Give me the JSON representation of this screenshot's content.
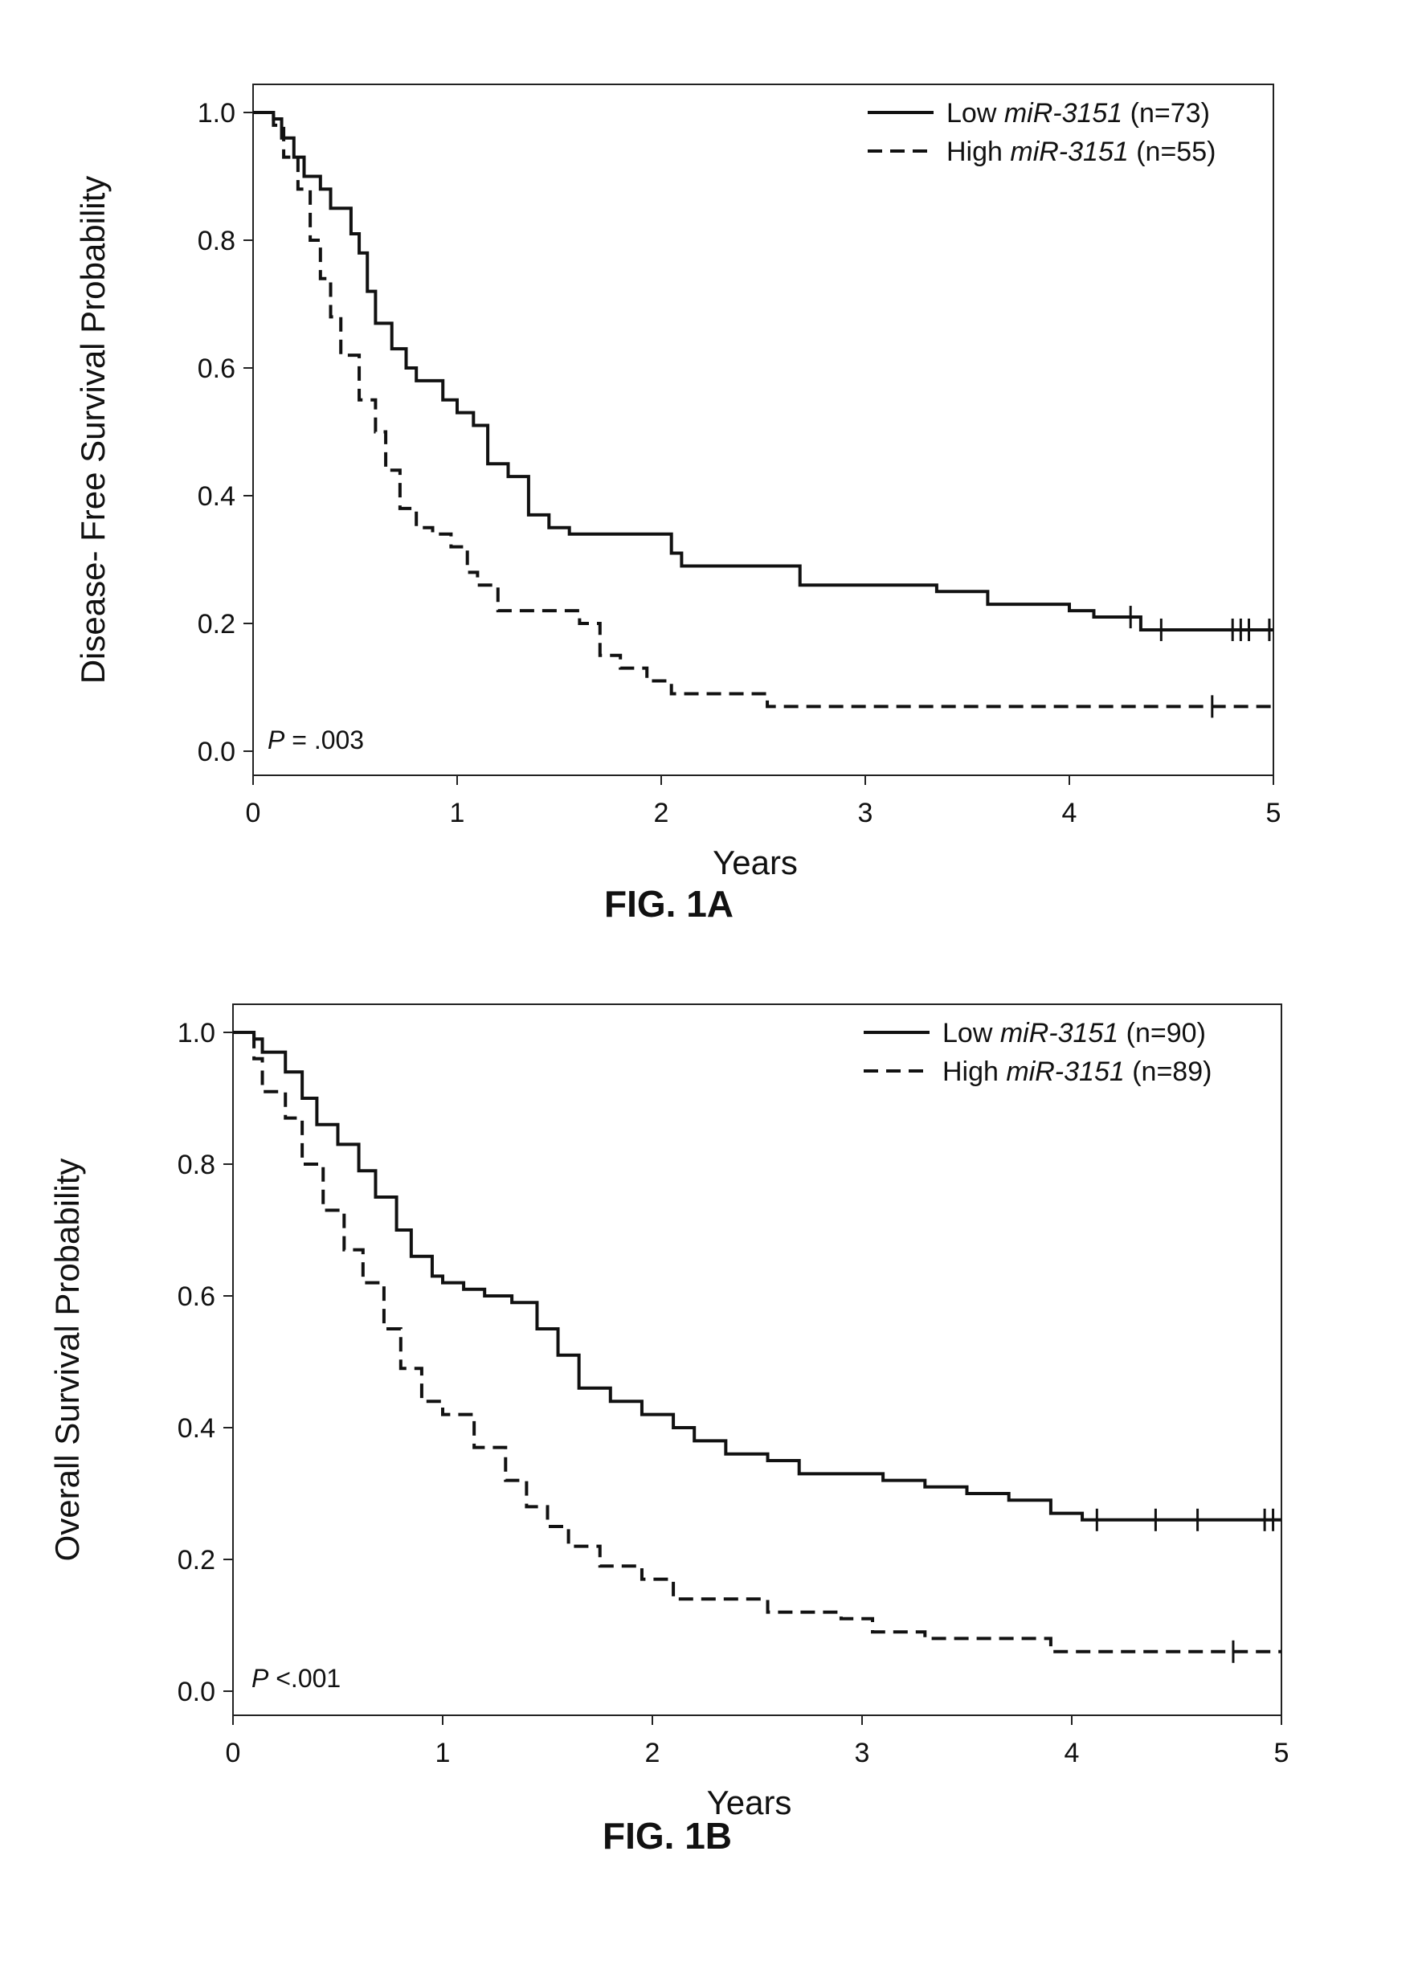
{
  "figures": [
    {
      "label": "FIG. 1A"
    },
    {
      "label": "FIG. 1B"
    }
  ],
  "chart_data": [
    {
      "type": "line",
      "subtype": "kaplan-meier-step",
      "ylabel": "Disease- Free Survival Probability",
      "xlabel": "Years",
      "xlim": [
        0,
        5
      ],
      "ylim": [
        0,
        1
      ],
      "x_ticks": [
        "0",
        "1",
        "2",
        "3",
        "4",
        "5"
      ],
      "y_ticks": [
        "0.0",
        "0.2",
        "0.4",
        "0.6",
        "0.8",
        "1.0"
      ],
      "legend_position": "top-right",
      "annotation": {
        "prefix": "P",
        "text": " = .003"
      },
      "series": [
        {
          "name_prefix": "Low ",
          "name_gene": "miR-3151",
          "name_suffix": " (n=73)",
          "style": "solid",
          "points": [
            [
              0,
              1.0
            ],
            [
              0.1,
              0.99
            ],
            [
              0.14,
              0.96
            ],
            [
              0.2,
              0.93
            ],
            [
              0.25,
              0.9
            ],
            [
              0.33,
              0.88
            ],
            [
              0.38,
              0.85
            ],
            [
              0.48,
              0.81
            ],
            [
              0.52,
              0.78
            ],
            [
              0.56,
              0.72
            ],
            [
              0.6,
              0.67
            ],
            [
              0.68,
              0.63
            ],
            [
              0.75,
              0.6
            ],
            [
              0.8,
              0.58
            ],
            [
              0.93,
              0.55
            ],
            [
              1.0,
              0.53
            ],
            [
              1.08,
              0.51
            ],
            [
              1.15,
              0.45
            ],
            [
              1.25,
              0.43
            ],
            [
              1.35,
              0.37
            ],
            [
              1.45,
              0.35
            ],
            [
              1.55,
              0.34
            ],
            [
              1.9,
              0.34
            ],
            [
              2.05,
              0.31
            ],
            [
              2.1,
              0.29
            ],
            [
              2.6,
              0.29
            ],
            [
              2.68,
              0.26
            ],
            [
              3.35,
              0.25
            ],
            [
              3.6,
              0.23
            ],
            [
              4.0,
              0.22
            ],
            [
              4.12,
              0.21
            ],
            [
              4.35,
              0.19
            ],
            [
              5.0,
              0.19
            ]
          ],
          "censor": [
            4.3,
            4.45,
            4.8,
            4.84,
            4.88,
            4.98
          ]
        },
        {
          "name_prefix": "High ",
          "name_gene": "miR-3151",
          "name_suffix": " (n=55)",
          "style": "dashed",
          "points": [
            [
              0,
              1.0
            ],
            [
              0.1,
              0.98
            ],
            [
              0.15,
              0.93
            ],
            [
              0.22,
              0.88
            ],
            [
              0.28,
              0.8
            ],
            [
              0.33,
              0.74
            ],
            [
              0.38,
              0.68
            ],
            [
              0.43,
              0.62
            ],
            [
              0.52,
              0.55
            ],
            [
              0.6,
              0.5
            ],
            [
              0.65,
              0.44
            ],
            [
              0.72,
              0.38
            ],
            [
              0.8,
              0.35
            ],
            [
              0.88,
              0.34
            ],
            [
              0.97,
              0.32
            ],
            [
              1.05,
              0.28
            ],
            [
              1.1,
              0.26
            ],
            [
              1.2,
              0.22
            ],
            [
              1.5,
              0.22
            ],
            [
              1.6,
              0.2
            ],
            [
              1.7,
              0.15
            ],
            [
              1.8,
              0.13
            ],
            [
              1.93,
              0.11
            ],
            [
              2.05,
              0.09
            ],
            [
              2.5,
              0.09
            ],
            [
              2.52,
              0.07
            ],
            [
              5.0,
              0.07
            ]
          ],
          "censor": [
            4.7
          ]
        }
      ]
    },
    {
      "type": "line",
      "subtype": "kaplan-meier-step",
      "ylabel": "Overall Survival Probability",
      "xlabel": "Years",
      "xlim": [
        0,
        5
      ],
      "ylim": [
        0,
        1
      ],
      "x_ticks": [
        "0",
        "1",
        "2",
        "3",
        "4",
        "5"
      ],
      "y_ticks": [
        "0.0",
        "0.2",
        "0.4",
        "0.6",
        "0.8",
        "1.0"
      ],
      "legend_position": "top-right",
      "annotation": {
        "prefix": "P",
        "text": " <.001"
      },
      "series": [
        {
          "name_prefix": "Low ",
          "name_gene": "miR-3151",
          "name_suffix": " (n=90)",
          "style": "solid",
          "points": [
            [
              0,
              1.0
            ],
            [
              0.1,
              0.99
            ],
            [
              0.14,
              0.97
            ],
            [
              0.25,
              0.94
            ],
            [
              0.33,
              0.9
            ],
            [
              0.4,
              0.86
            ],
            [
              0.5,
              0.83
            ],
            [
              0.6,
              0.79
            ],
            [
              0.68,
              0.75
            ],
            [
              0.78,
              0.7
            ],
            [
              0.85,
              0.66
            ],
            [
              0.95,
              0.63
            ],
            [
              1.0,
              0.62
            ],
            [
              1.1,
              0.61
            ],
            [
              1.2,
              0.6
            ],
            [
              1.33,
              0.59
            ],
            [
              1.45,
              0.55
            ],
            [
              1.55,
              0.51
            ],
            [
              1.65,
              0.46
            ],
            [
              1.8,
              0.44
            ],
            [
              1.95,
              0.42
            ],
            [
              2.1,
              0.4
            ],
            [
              2.2,
              0.38
            ],
            [
              2.35,
              0.36
            ],
            [
              2.55,
              0.35
            ],
            [
              2.7,
              0.33
            ],
            [
              3.1,
              0.32
            ],
            [
              3.3,
              0.31
            ],
            [
              3.5,
              0.3
            ],
            [
              3.7,
              0.29
            ],
            [
              3.9,
              0.27
            ],
            [
              4.05,
              0.26
            ],
            [
              5.0,
              0.26
            ]
          ],
          "censor": [
            4.12,
            4.4,
            4.6,
            4.92,
            4.96
          ]
        },
        {
          "name_prefix": "High ",
          "name_gene": "miR-3151",
          "name_suffix": " (n=89)",
          "style": "dashed",
          "points": [
            [
              0,
              1.0
            ],
            [
              0.1,
              0.96
            ],
            [
              0.14,
              0.91
            ],
            [
              0.25,
              0.87
            ],
            [
              0.33,
              0.8
            ],
            [
              0.43,
              0.73
            ],
            [
              0.53,
              0.67
            ],
            [
              0.62,
              0.62
            ],
            [
              0.72,
              0.55
            ],
            [
              0.8,
              0.49
            ],
            [
              0.9,
              0.44
            ],
            [
              1.0,
              0.42
            ],
            [
              1.15,
              0.37
            ],
            [
              1.3,
              0.32
            ],
            [
              1.4,
              0.28
            ],
            [
              1.5,
              0.25
            ],
            [
              1.6,
              0.22
            ],
            [
              1.75,
              0.19
            ],
            [
              1.95,
              0.17
            ],
            [
              2.1,
              0.14
            ],
            [
              2.5,
              0.14
            ],
            [
              2.55,
              0.12
            ],
            [
              2.9,
              0.11
            ],
            [
              3.05,
              0.09
            ],
            [
              3.3,
              0.08
            ],
            [
              3.9,
              0.06
            ],
            [
              5.0,
              0.06
            ]
          ],
          "censor": [
            4.77
          ]
        }
      ]
    }
  ]
}
